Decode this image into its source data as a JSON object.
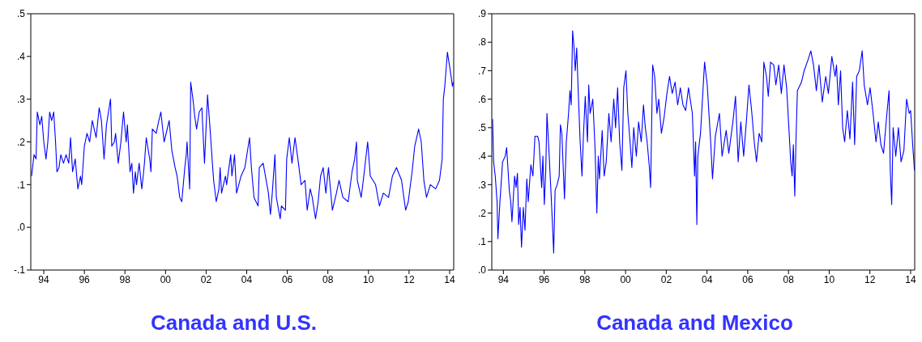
{
  "chart_data": [
    {
      "type": "line",
      "title": "Canada and U.S.",
      "xlim": [
        1993.36,
        2014.2
      ],
      "xticks": [
        {
          "value": 1994,
          "label": "94"
        },
        {
          "value": 1996,
          "label": "96"
        },
        {
          "value": 1998,
          "label": "98"
        },
        {
          "value": 2000,
          "label": "00"
        },
        {
          "value": 2002,
          "label": "02"
        },
        {
          "value": 2004,
          "label": "04"
        },
        {
          "value": 2006,
          "label": "06"
        },
        {
          "value": 2008,
          "label": "08"
        },
        {
          "value": 2010,
          "label": "10"
        },
        {
          "value": 2012,
          "label": "12"
        },
        {
          "value": 2014,
          "label": "14"
        }
      ],
      "ylim": [
        -0.1,
        0.5
      ],
      "yticks": [
        {
          "value": -0.1,
          "label": "-.1"
        },
        {
          "value": 0,
          "label": ".0"
        },
        {
          "value": 0.1,
          "label": ".1"
        },
        {
          "value": 0.2,
          "label": ".2"
        },
        {
          "value": 0.3,
          "label": ".3"
        },
        {
          "value": 0.4,
          "label": ".4"
        },
        {
          "value": 0.5,
          "label": ".5"
        }
      ],
      "x": [
        1993.4,
        1993.52,
        1993.62,
        1993.68,
        1993.81,
        1993.9,
        1994.0,
        1994.11,
        1994.2,
        1994.29,
        1994.39,
        1994.49,
        1994.58,
        1994.65,
        1994.75,
        1994.84,
        1994.97,
        1995.1,
        1995.23,
        1995.32,
        1995.42,
        1995.55,
        1995.68,
        1995.81,
        1995.87,
        1996.0,
        1996.13,
        1996.26,
        1996.39,
        1996.58,
        1996.73,
        1996.84,
        1996.97,
        1997.09,
        1997.22,
        1997.29,
        1997.35,
        1997.48,
        1997.54,
        1997.67,
        1997.8,
        1997.93,
        1998.06,
        1998.12,
        1998.25,
        1998.34,
        1998.42,
        1998.51,
        1998.57,
        1998.7,
        1998.83,
        1998.9,
        1998.96,
        1999.05,
        1999.22,
        1999.28,
        1999.35,
        1999.54,
        1999.67,
        1999.77,
        1999.93,
        2000.18,
        2000.31,
        2000.47,
        2000.57,
        2000.7,
        2000.8,
        2000.95,
        2001.02,
        2001.06,
        2001.19,
        2001.24,
        2001.35,
        2001.44,
        2001.53,
        2001.66,
        2001.79,
        2001.92,
        2002.07,
        2002.18,
        2002.31,
        2002.37,
        2002.5,
        2002.63,
        2002.69,
        2002.76,
        2002.95,
        2003.01,
        2003.21,
        2003.27,
        2003.4,
        2003.5,
        2003.72,
        2003.91,
        2004.14,
        2004.23,
        2004.36,
        2004.56,
        2004.62,
        2004.81,
        2005.07,
        2005.17,
        2005.26,
        2005.39,
        2005.46,
        2005.65,
        2005.71,
        2005.91,
        2005.97,
        2006.1,
        2006.23,
        2006.38,
        2006.55,
        2006.68,
        2006.87,
        2006.98,
        2007.13,
        2007.23,
        2007.39,
        2007.52,
        2007.64,
        2007.77,
        2007.9,
        2008.03,
        2008.22,
        2008.42,
        2008.55,
        2008.74,
        2009.0,
        2009.19,
        2009.32,
        2009.41,
        2009.45,
        2009.64,
        2009.77,
        2009.96,
        2010.09,
        2010.35,
        2010.54,
        2010.73,
        2010.99,
        2011.18,
        2011.38,
        2011.63,
        2011.83,
        2011.96,
        2012.15,
        2012.28,
        2012.47,
        2012.6,
        2012.73,
        2012.86,
        2013.05,
        2013.31,
        2013.5,
        2013.63,
        2013.69,
        2013.76,
        2013.89,
        2014.02,
        2014.14,
        2014.18
      ],
      "series": [
        {
          "color": "#0000ff",
          "values": [
            0.12,
            0.17,
            0.16,
            0.27,
            0.24,
            0.26,
            0.2,
            0.16,
            0.2,
            0.27,
            0.25,
            0.27,
            0.2,
            0.13,
            0.14,
            0.17,
            0.15,
            0.17,
            0.15,
            0.21,
            0.13,
            0.16,
            0.09,
            0.12,
            0.1,
            0.19,
            0.22,
            0.2,
            0.25,
            0.21,
            0.28,
            0.25,
            0.16,
            0.24,
            0.28,
            0.3,
            0.19,
            0.2,
            0.22,
            0.15,
            0.2,
            0.27,
            0.2,
            0.24,
            0.13,
            0.15,
            0.08,
            0.13,
            0.1,
            0.15,
            0.09,
            0.12,
            0.15,
            0.21,
            0.16,
            0.13,
            0.23,
            0.22,
            0.25,
            0.27,
            0.2,
            0.25,
            0.18,
            0.14,
            0.12,
            0.07,
            0.06,
            0.14,
            0.17,
            0.2,
            0.09,
            0.34,
            0.3,
            0.26,
            0.23,
            0.27,
            0.28,
            0.15,
            0.31,
            0.24,
            0.15,
            0.11,
            0.06,
            0.09,
            0.14,
            0.08,
            0.12,
            0.1,
            0.17,
            0.12,
            0.17,
            0.08,
            0.12,
            0.14,
            0.21,
            0.14,
            0.07,
            0.05,
            0.14,
            0.15,
            0.08,
            0.03,
            0.08,
            0.17,
            0.07,
            0.02,
            0.05,
            0.04,
            0.16,
            0.21,
            0.15,
            0.21,
            0.15,
            0.1,
            0.11,
            0.04,
            0.09,
            0.07,
            0.02,
            0.06,
            0.12,
            0.14,
            0.08,
            0.14,
            0.04,
            0.08,
            0.11,
            0.07,
            0.06,
            0.13,
            0.16,
            0.2,
            0.11,
            0.07,
            0.12,
            0.2,
            0.12,
            0.1,
            0.05,
            0.08,
            0.07,
            0.12,
            0.14,
            0.11,
            0.04,
            0.06,
            0.13,
            0.19,
            0.23,
            0.2,
            0.11,
            0.07,
            0.1,
            0.09,
            0.11,
            0.16,
            0.3,
            0.33,
            0.41,
            0.37,
            0.33,
            0.34
          ]
        }
      ]
    },
    {
      "type": "line",
      "title": "Canada and Mexico",
      "xlim": [
        1993.43,
        2014.2
      ],
      "xticks": [
        {
          "value": 1994,
          "label": "94"
        },
        {
          "value": 1996,
          "label": "96"
        },
        {
          "value": 1998,
          "label": "98"
        },
        {
          "value": 2000,
          "label": "00"
        },
        {
          "value": 2002,
          "label": "02"
        },
        {
          "value": 2004,
          "label": "04"
        },
        {
          "value": 2006,
          "label": "06"
        },
        {
          "value": 2008,
          "label": "08"
        },
        {
          "value": 2010,
          "label": "10"
        },
        {
          "value": 2012,
          "label": "12"
        },
        {
          "value": 2014,
          "label": "14"
        }
      ],
      "ylim": [
        0,
        0.9
      ],
      "yticks": [
        {
          "value": 0,
          "label": ".0"
        },
        {
          "value": 0.1,
          "label": ".1"
        },
        {
          "value": 0.2,
          "label": ".2"
        },
        {
          "value": 0.3,
          "label": ".3"
        },
        {
          "value": 0.4,
          "label": ".4"
        },
        {
          "value": 0.5,
          "label": ".5"
        },
        {
          "value": 0.6,
          "label": ".6"
        },
        {
          "value": 0.7,
          "label": ".7"
        },
        {
          "value": 0.8,
          "label": ".8"
        },
        {
          "value": 0.9,
          "label": ".9"
        }
      ],
      "x": [
        1993.47,
        1993.52,
        1993.6,
        1993.69,
        1993.73,
        1993.83,
        1993.96,
        1994.09,
        1994.16,
        1994.29,
        1994.36,
        1994.42,
        1994.55,
        1994.62,
        1994.69,
        1994.75,
        1994.82,
        1994.89,
        1994.98,
        1995.06,
        1995.15,
        1995.22,
        1995.35,
        1995.45,
        1995.55,
        1995.68,
        1995.75,
        1995.88,
        1995.94,
        1996.01,
        1996.08,
        1996.14,
        1996.25,
        1996.34,
        1996.41,
        1996.47,
        1996.54,
        1996.64,
        1996.74,
        1996.8,
        1996.87,
        1997.0,
        1997.09,
        1997.2,
        1997.27,
        1997.33,
        1997.4,
        1997.46,
        1997.53,
        1997.6,
        1997.7,
        1997.77,
        1997.86,
        1997.93,
        1998.02,
        1998.13,
        1998.19,
        1998.26,
        1998.39,
        1998.5,
        1998.59,
        1998.66,
        1998.72,
        1998.85,
        1998.95,
        1999.05,
        1999.18,
        1999.29,
        1999.42,
        1999.51,
        1999.61,
        1999.71,
        1999.82,
        1999.91,
        2000.02,
        2000.11,
        2000.2,
        2000.31,
        2000.4,
        2000.53,
        2000.64,
        2000.77,
        2000.88,
        2000.97,
        2001.06,
        2001.17,
        2001.23,
        2001.33,
        2001.43,
        2001.54,
        2001.63,
        2001.76,
        2001.9,
        2002.03,
        2002.16,
        2002.29,
        2002.43,
        2002.56,
        2002.69,
        2002.82,
        2002.95,
        2003.09,
        2003.28,
        2003.39,
        2003.44,
        2003.5,
        2003.55,
        2003.68,
        2003.88,
        2004.01,
        2004.18,
        2004.27,
        2004.41,
        2004.61,
        2004.74,
        2004.94,
        2005.07,
        2005.27,
        2005.4,
        2005.53,
        2005.66,
        2005.8,
        2005.93,
        2006.06,
        2006.19,
        2006.32,
        2006.43,
        2006.56,
        2006.69,
        2006.79,
        2006.92,
        2007.01,
        2007.12,
        2007.28,
        2007.38,
        2007.52,
        2007.65,
        2007.78,
        2007.91,
        2008.02,
        2008.11,
        2008.18,
        2008.24,
        2008.31,
        2008.37,
        2008.44,
        2008.64,
        2008.77,
        2008.97,
        2009.1,
        2009.23,
        2009.37,
        2009.5,
        2009.66,
        2009.83,
        2009.96,
        2010.13,
        2010.29,
        2010.36,
        2010.45,
        2010.56,
        2010.66,
        2010.76,
        2010.89,
        2011.02,
        2011.15,
        2011.25,
        2011.35,
        2011.48,
        2011.62,
        2011.72,
        2011.88,
        2012.01,
        2012.14,
        2012.3,
        2012.41,
        2012.54,
        2012.67,
        2012.81,
        2012.94,
        2013.0,
        2013.07,
        2013.14,
        2013.27,
        2013.4,
        2013.53,
        2013.67,
        2013.8,
        2013.93,
        2014.0,
        2014.1,
        2014.19
      ],
      "series": [
        {
          "color": "#0000ff",
          "values": [
            0.53,
            0.38,
            0.33,
            0.24,
            0.11,
            0.24,
            0.38,
            0.4,
            0.43,
            0.28,
            0.24,
            0.17,
            0.33,
            0.29,
            0.34,
            0.16,
            0.22,
            0.08,
            0.22,
            0.14,
            0.32,
            0.24,
            0.37,
            0.33,
            0.47,
            0.47,
            0.45,
            0.29,
            0.4,
            0.23,
            0.35,
            0.55,
            0.4,
            0.27,
            0.16,
            0.06,
            0.28,
            0.3,
            0.33,
            0.51,
            0.48,
            0.25,
            0.45,
            0.55,
            0.63,
            0.58,
            0.84,
            0.79,
            0.7,
            0.78,
            0.58,
            0.45,
            0.33,
            0.47,
            0.61,
            0.45,
            0.65,
            0.55,
            0.6,
            0.43,
            0.2,
            0.4,
            0.32,
            0.49,
            0.33,
            0.38,
            0.55,
            0.45,
            0.6,
            0.5,
            0.64,
            0.45,
            0.35,
            0.64,
            0.7,
            0.55,
            0.47,
            0.36,
            0.5,
            0.4,
            0.52,
            0.45,
            0.58,
            0.5,
            0.45,
            0.36,
            0.29,
            0.72,
            0.68,
            0.55,
            0.6,
            0.48,
            0.54,
            0.62,
            0.68,
            0.62,
            0.66,
            0.58,
            0.64,
            0.58,
            0.56,
            0.64,
            0.55,
            0.33,
            0.45,
            0.16,
            0.4,
            0.48,
            0.73,
            0.65,
            0.45,
            0.32,
            0.47,
            0.55,
            0.4,
            0.49,
            0.41,
            0.52,
            0.61,
            0.38,
            0.52,
            0.4,
            0.52,
            0.65,
            0.56,
            0.45,
            0.38,
            0.48,
            0.45,
            0.73,
            0.68,
            0.61,
            0.73,
            0.72,
            0.65,
            0.72,
            0.62,
            0.72,
            0.64,
            0.5,
            0.38,
            0.33,
            0.44,
            0.26,
            0.46,
            0.63,
            0.66,
            0.7,
            0.74,
            0.77,
            0.72,
            0.63,
            0.72,
            0.59,
            0.68,
            0.62,
            0.75,
            0.68,
            0.72,
            0.58,
            0.7,
            0.5,
            0.45,
            0.56,
            0.46,
            0.66,
            0.44,
            0.68,
            0.7,
            0.77,
            0.65,
            0.58,
            0.64,
            0.56,
            0.45,
            0.52,
            0.44,
            0.41,
            0.53,
            0.63,
            0.35,
            0.23,
            0.5,
            0.4,
            0.5,
            0.38,
            0.42,
            0.6,
            0.55,
            0.56,
            0.44,
            0.35
          ]
        }
      ]
    }
  ]
}
